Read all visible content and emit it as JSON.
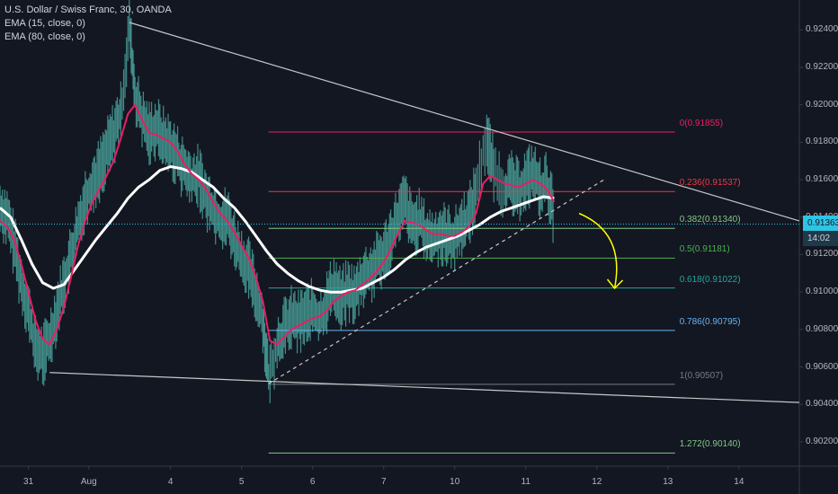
{
  "header": {
    "symbol_line": "U.S. Dollar / Swiss Franc, 30, OANDA",
    "indicators": [
      "EMA (15, close, 0)",
      "EMA (80, close, 0)"
    ]
  },
  "colors": {
    "background": "#131722",
    "candle": "#4aa19a",
    "ema15": "#e91e63",
    "ema80": "#ffffff",
    "trendline": "#c7c7c7",
    "arrow": "#ffff00",
    "current_price_line": "#2ec4e6",
    "fib_0": "#e91e63",
    "fib_236": "#f23645",
    "fib_382": "#81c784",
    "fib_5": "#4caf50",
    "fib_618": "#26a69a",
    "fib_786": "#64b5f6",
    "fib_1": "#787b86",
    "fib_1272": "#81c784"
  },
  "chart_data": {
    "type": "line",
    "title": "U.S. Dollar / Swiss Franc, 30, OANDA",
    "x_ticks": [
      "31",
      "Aug",
      "4",
      "5",
      "6",
      "7",
      "10",
      "11",
      "12",
      "13",
      "14"
    ],
    "y_ticks": [
      "0.92400",
      "0.92200",
      "0.92000",
      "0.91800",
      "0.91600",
      "0.91400",
      "0.91200",
      "0.91000",
      "0.90800",
      "0.90600",
      "0.90400",
      "0.90200"
    ],
    "y_tick_values": [
      0.924,
      0.922,
      0.92,
      0.918,
      0.916,
      0.914,
      0.912,
      0.91,
      0.908,
      0.906,
      0.904,
      0.902
    ],
    "ylim": [
      0.9007,
      0.9256
    ],
    "x_domain": [
      -0.4,
      10.85
    ],
    "x_tick_positions": [
      0,
      0.85,
      2,
      3,
      4,
      5,
      6,
      7,
      8,
      9,
      10
    ],
    "current_price": {
      "value": 0.91363,
      "label": "0.91363",
      "time_label": "14:02"
    },
    "price_close": [
      [
        -0.4,
        0.9145
      ],
      [
        -0.3,
        0.914
      ],
      [
        -0.2,
        0.9125
      ],
      [
        -0.1,
        0.9105
      ],
      [
        0,
        0.909
      ],
      [
        0.1,
        0.907
      ],
      [
        0.2,
        0.9066
      ],
      [
        0.3,
        0.9075
      ],
      [
        0.4,
        0.909
      ],
      [
        0.5,
        0.9105
      ],
      [
        0.6,
        0.912
      ],
      [
        0.7,
        0.9135
      ],
      [
        0.8,
        0.915
      ],
      [
        0.9,
        0.9158
      ],
      [
        1.0,
        0.9165
      ],
      [
        1.1,
        0.9175
      ],
      [
        1.2,
        0.9185
      ],
      [
        1.3,
        0.9195
      ],
      [
        1.42,
        0.9242
      ],
      [
        1.5,
        0.9205
      ],
      [
        1.6,
        0.9192
      ],
      [
        1.7,
        0.9185
      ],
      [
        1.8,
        0.9188
      ],
      [
        1.9,
        0.9182
      ],
      [
        2.0,
        0.9178
      ],
      [
        2.1,
        0.9172
      ],
      [
        2.2,
        0.9165
      ],
      [
        2.3,
        0.916
      ],
      [
        2.4,
        0.9162
      ],
      [
        2.5,
        0.915
      ],
      [
        2.6,
        0.9145
      ],
      [
        2.7,
        0.9138
      ],
      [
        2.8,
        0.914
      ],
      [
        2.9,
        0.9128
      ],
      [
        3.0,
        0.9118
      ],
      [
        3.1,
        0.9112
      ],
      [
        3.2,
        0.91
      ],
      [
        3.3,
        0.9085
      ],
      [
        3.38,
        0.9054
      ],
      [
        3.5,
        0.9072
      ],
      [
        3.6,
        0.908
      ],
      [
        3.7,
        0.9086
      ],
      [
        3.8,
        0.9084
      ],
      [
        3.9,
        0.9088
      ],
      [
        4.0,
        0.909
      ],
      [
        4.1,
        0.9085
      ],
      [
        4.2,
        0.9095
      ],
      [
        4.3,
        0.9104
      ],
      [
        4.4,
        0.9096
      ],
      [
        4.5,
        0.9101
      ],
      [
        4.6,
        0.9098
      ],
      [
        4.7,
        0.9108
      ],
      [
        4.8,
        0.911
      ],
      [
        4.9,
        0.9115
      ],
      [
        5.0,
        0.912
      ],
      [
        5.1,
        0.913
      ],
      [
        5.2,
        0.914
      ],
      [
        5.3,
        0.9148
      ],
      [
        5.4,
        0.9135
      ],
      [
        5.5,
        0.9138
      ],
      [
        5.6,
        0.913
      ],
      [
        5.7,
        0.9128
      ],
      [
        5.8,
        0.9132
      ],
      [
        5.9,
        0.913
      ],
      [
        6.0,
        0.9128
      ],
      [
        6.1,
        0.9136
      ],
      [
        6.2,
        0.914
      ],
      [
        6.3,
        0.9155
      ],
      [
        6.45,
        0.9183
      ],
      [
        6.55,
        0.9165
      ],
      [
        6.7,
        0.9155
      ],
      [
        6.8,
        0.9158
      ],
      [
        6.9,
        0.9154
      ],
      [
        7.0,
        0.916
      ],
      [
        7.1,
        0.9164
      ],
      [
        7.2,
        0.9155
      ],
      [
        7.3,
        0.9158
      ],
      [
        7.4,
        0.914
      ]
    ],
    "ema15": [
      [
        -0.4,
        0.9138
      ],
      [
        -0.3,
        0.9135
      ],
      [
        -0.2,
        0.9128
      ],
      [
        -0.1,
        0.9115
      ],
      [
        0,
        0.91
      ],
      [
        0.1,
        0.9085
      ],
      [
        0.2,
        0.9075
      ],
      [
        0.3,
        0.9072
      ],
      [
        0.4,
        0.908
      ],
      [
        0.5,
        0.9092
      ],
      [
        0.6,
        0.9108
      ],
      [
        0.7,
        0.9125
      ],
      [
        0.8,
        0.9138
      ],
      [
        0.9,
        0.9148
      ],
      [
        1.0,
        0.9155
      ],
      [
        1.1,
        0.9162
      ],
      [
        1.2,
        0.917
      ],
      [
        1.3,
        0.9182
      ],
      [
        1.4,
        0.9195
      ],
      [
        1.5,
        0.92
      ],
      [
        1.6,
        0.9192
      ],
      [
        1.7,
        0.9185
      ],
      [
        1.8,
        0.9184
      ],
      [
        1.9,
        0.9182
      ],
      [
        2.0,
        0.918
      ],
      [
        2.1,
        0.9175
      ],
      [
        2.2,
        0.9168
      ],
      [
        2.3,
        0.9163
      ],
      [
        2.4,
        0.916
      ],
      [
        2.5,
        0.9155
      ],
      [
        2.6,
        0.9148
      ],
      [
        2.7,
        0.9142
      ],
      [
        2.8,
        0.9138
      ],
      [
        2.9,
        0.9132
      ],
      [
        3.0,
        0.9125
      ],
      [
        3.1,
        0.9118
      ],
      [
        3.2,
        0.9108
      ],
      [
        3.3,
        0.9095
      ],
      [
        3.4,
        0.9074
      ],
      [
        3.5,
        0.9072
      ],
      [
        3.6,
        0.9076
      ],
      [
        3.7,
        0.908
      ],
      [
        3.8,
        0.9082
      ],
      [
        3.9,
        0.9084
      ],
      [
        4.0,
        0.9086
      ],
      [
        4.1,
        0.9087
      ],
      [
        4.2,
        0.909
      ],
      [
        4.3,
        0.9095
      ],
      [
        4.4,
        0.9098
      ],
      [
        4.5,
        0.91
      ],
      [
        4.6,
        0.9101
      ],
      [
        4.7,
        0.9104
      ],
      [
        4.8,
        0.9107
      ],
      [
        4.9,
        0.9111
      ],
      [
        5.0,
        0.9116
      ],
      [
        5.1,
        0.9123
      ],
      [
        5.2,
        0.9131
      ],
      [
        5.3,
        0.9138
      ],
      [
        5.4,
        0.9137
      ],
      [
        5.5,
        0.9136
      ],
      [
        5.6,
        0.9133
      ],
      [
        5.7,
        0.9131
      ],
      [
        5.8,
        0.9131
      ],
      [
        5.9,
        0.913
      ],
      [
        6.0,
        0.913
      ],
      [
        6.1,
        0.9132
      ],
      [
        6.2,
        0.9135
      ],
      [
        6.3,
        0.9142
      ],
      [
        6.4,
        0.9158
      ],
      [
        6.5,
        0.9162
      ],
      [
        6.6,
        0.916
      ],
      [
        6.7,
        0.9158
      ],
      [
        6.8,
        0.9157
      ],
      [
        6.9,
        0.9156
      ],
      [
        7.0,
        0.9158
      ],
      [
        7.1,
        0.916
      ],
      [
        7.2,
        0.9158
      ],
      [
        7.3,
        0.9155
      ],
      [
        7.4,
        0.9148
      ]
    ],
    "ema80": [
      [
        -0.4,
        0.9145
      ],
      [
        -0.25,
        0.914
      ],
      [
        -0.1,
        0.9128
      ],
      [
        0.05,
        0.9115
      ],
      [
        0.2,
        0.9105
      ],
      [
        0.35,
        0.9102
      ],
      [
        0.5,
        0.9104
      ],
      [
        0.65,
        0.9112
      ],
      [
        0.8,
        0.912
      ],
      [
        0.95,
        0.9128
      ],
      [
        1.1,
        0.9135
      ],
      [
        1.25,
        0.9142
      ],
      [
        1.4,
        0.915
      ],
      [
        1.55,
        0.9156
      ],
      [
        1.7,
        0.916
      ],
      [
        1.85,
        0.9165
      ],
      [
        2.0,
        0.9167
      ],
      [
        2.15,
        0.9166
      ],
      [
        2.3,
        0.9164
      ],
      [
        2.45,
        0.916
      ],
      [
        2.6,
        0.9156
      ],
      [
        2.75,
        0.915
      ],
      [
        2.9,
        0.9145
      ],
      [
        3.05,
        0.9138
      ],
      [
        3.2,
        0.913
      ],
      [
        3.35,
        0.9122
      ],
      [
        3.5,
        0.9115
      ],
      [
        3.65,
        0.911
      ],
      [
        3.8,
        0.9106
      ],
      [
        3.95,
        0.9103
      ],
      [
        4.1,
        0.9101
      ],
      [
        4.25,
        0.91
      ],
      [
        4.4,
        0.91
      ],
      [
        4.55,
        0.9101
      ],
      [
        4.7,
        0.9102
      ],
      [
        4.85,
        0.9105
      ],
      [
        5.0,
        0.9108
      ],
      [
        5.15,
        0.9112
      ],
      [
        5.3,
        0.9117
      ],
      [
        5.45,
        0.9121
      ],
      [
        5.6,
        0.9124
      ],
      [
        5.75,
        0.9126
      ],
      [
        5.9,
        0.9128
      ],
      [
        6.05,
        0.913
      ],
      [
        6.2,
        0.9133
      ],
      [
        6.35,
        0.9136
      ],
      [
        6.5,
        0.914
      ],
      [
        6.65,
        0.9143
      ],
      [
        6.8,
        0.9145
      ],
      [
        6.95,
        0.9147
      ],
      [
        7.1,
        0.9149
      ],
      [
        7.25,
        0.9151
      ],
      [
        7.4,
        0.915
      ]
    ],
    "fib_levels": [
      {
        "label": "0(0.91855)",
        "value": 0.91855,
        "color": "#e91e63"
      },
      {
        "label": "0.236(0.91537)",
        "value": 0.91537,
        "color": "#f23645"
      },
      {
        "label": "0.382(0.91340)",
        "value": 0.9134,
        "color": "#81c784"
      },
      {
        "label": "0.5(0.91181)",
        "value": 0.91181,
        "color": "#4caf50"
      },
      {
        "label": "0.618(0.91022)",
        "value": 0.91022,
        "color": "#26a69a"
      },
      {
        "label": "0.786(0.90795)",
        "value": 0.90795,
        "color": "#64b5f6"
      },
      {
        "label": "1(0.90507)",
        "value": 0.90507,
        "color": "#787b86"
      },
      {
        "label": "1.272(0.90140)",
        "value": 0.9014,
        "color": "#81c784"
      }
    ],
    "fib_x_range": [
      3.38,
      9.1
    ],
    "trendlines": [
      {
        "name": "upper-falling-trendline",
        "from": [
          1.42,
          0.9244
        ],
        "to": [
          10.85,
          0.9138
        ],
        "style": "solid"
      },
      {
        "name": "lower-falling-trendline",
        "from": [
          0.3,
          0.9057
        ],
        "to": [
          10.85,
          0.9041
        ],
        "style": "solid"
      },
      {
        "name": "rising-support-trendline",
        "from": [
          3.38,
          0.9051
        ],
        "to": [
          8.1,
          0.916
        ],
        "style": "dashed"
      }
    ],
    "projection_arrow": {
      "from": [
        7.75,
        0.9142
      ],
      "to": [
        8.25,
        0.9102
      ]
    }
  }
}
